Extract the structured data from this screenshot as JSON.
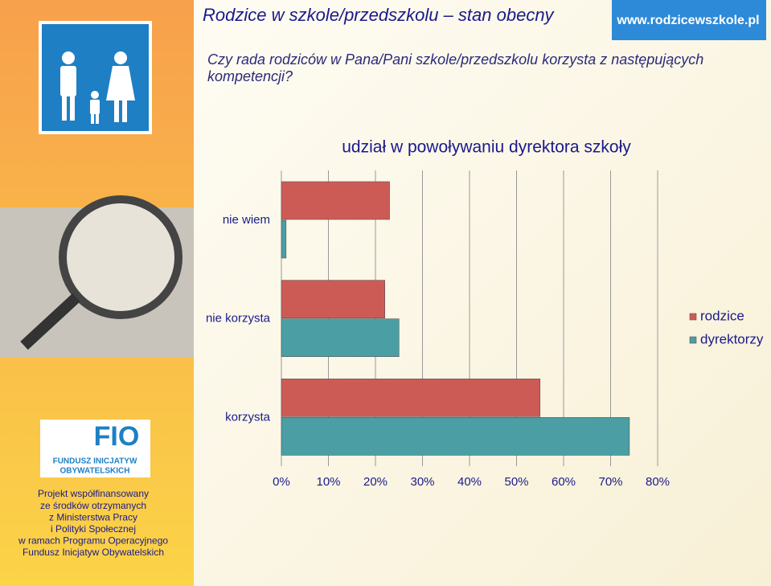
{
  "header": {
    "title": "Rodzice w szkole/przedszkolu – stan obecny",
    "site": "www.rodzicewszkole.pl"
  },
  "question": "Czy rada rodziców w Pana/Pani szkole/przedszkolu korzysta z następujących kompetencji?",
  "sidebar": {
    "logo_text": "FIO",
    "logo_subtitle": [
      "FUNDUSZ INICJATYW",
      "OBYWATELSKICH"
    ],
    "project_note": [
      "Projekt współfinansowany",
      "ze środków otrzymanych",
      "z Ministerstwa Pracy",
      "i Polityki Społecznej",
      "w ramach Programu Operacyjnego",
      "Fundusz Inicjatyw Obywatelskich"
    ]
  },
  "chart_data": {
    "type": "bar",
    "orientation": "horizontal",
    "title": "udział w powoływaniu dyrektora szkoły",
    "categories": [
      "nie wiem",
      "nie korzysta",
      "korzysta"
    ],
    "series": [
      {
        "name": "rodzice",
        "color": "#cd5b55",
        "values": [
          23,
          22,
          55
        ]
      },
      {
        "name": "dyrektorzy",
        "color": "#4a9ea4",
        "values": [
          1,
          25,
          74
        ]
      }
    ],
    "xlim": [
      0,
      80
    ],
    "xticks": [
      {
        "value": 0,
        "label": "0%"
      },
      {
        "value": 10,
        "label": "10%"
      },
      {
        "value": 20,
        "label": "20%"
      },
      {
        "value": 30,
        "label": "30%"
      },
      {
        "value": 40,
        "label": "40%"
      },
      {
        "value": 50,
        "label": "50%"
      },
      {
        "value": 60,
        "label": "60%"
      },
      {
        "value": 70,
        "label": "70%"
      },
      {
        "value": 80,
        "label": "80%"
      }
    ],
    "grid": true
  }
}
